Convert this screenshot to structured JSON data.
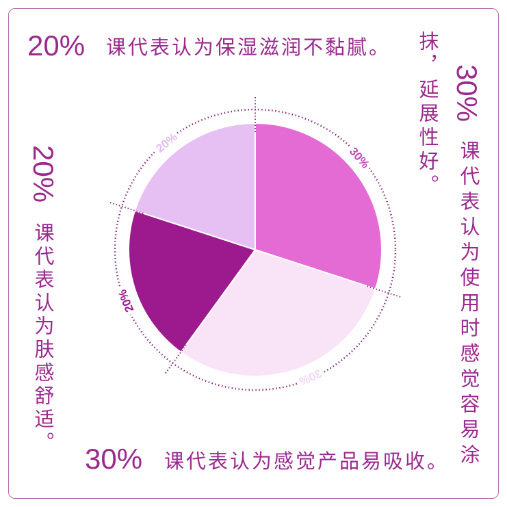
{
  "captions": {
    "top": {
      "pct": "20%",
      "text": "课代表认为保湿滋润不黏腻。"
    },
    "left": {
      "pct": "20%",
      "text": "课代表认为肤感舒适。"
    },
    "bottom": {
      "pct": "30%",
      "text": "课代表认为感觉产品易吸收。"
    },
    "right": {
      "pct": "30%",
      "text": "课代表认为使用时感觉容易涂",
      "text2": "抹，延展性好。"
    }
  },
  "chart_data": {
    "type": "pie",
    "start": "top",
    "direction": "clockwise",
    "slices": [
      {
        "value": 30,
        "label": "30%",
        "color": "#e46bd4",
        "label_color": "#c04ab4"
      },
      {
        "value": 30,
        "label": "30%",
        "color": "#f9e3f7",
        "label_color": "#f3d6f0"
      },
      {
        "value": 20,
        "label": "20%",
        "color": "#9c1a8e",
        "label_color": "#9c1a8e"
      },
      {
        "value": 20,
        "label": "20%",
        "color": "#e6c0f3",
        "label_color": "#e2bdf0"
      }
    ],
    "ring_color": "#8a2a7e"
  }
}
